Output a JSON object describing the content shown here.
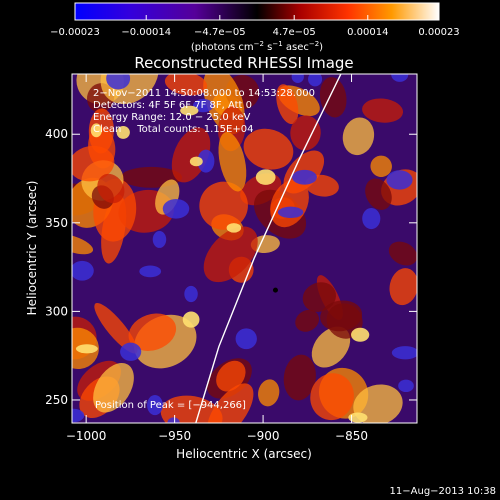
{
  "chart_data": {
    "type": "heatmap",
    "title": "Reconstructed RHESSI Image",
    "xlabel": "Heliocentric X (arcsec)",
    "ylabel": "Heliocentric Y (arcsec)",
    "xlim": [
      -1008,
      -813
    ],
    "ylim": [
      237,
      434
    ],
    "x_ticks": [
      -1000,
      -950,
      -900,
      -850
    ],
    "y_ticks": [
      250,
      300,
      350,
      400
    ],
    "x_tick_labels": [
      "−1000",
      "−950",
      "−900",
      "−850"
    ],
    "y_tick_labels": [
      "250",
      "300",
      "350",
      "400"
    ],
    "colorbar": {
      "range": [
        -0.00023,
        0.00023
      ],
      "ticks": [
        -0.00023,
        -0.00014,
        -4.7e-05,
        4.7e-05,
        0.00014,
        0.00023
      ],
      "tick_labels": [
        "−0.00023",
        "−0.00014",
        "−4.7e−05",
        "4.7e−05",
        "0.00014",
        "0.00023"
      ],
      "label_main": "(photons cm",
      "label_exp1": "−2",
      "label_mid": " s",
      "label_exp2": "−1",
      "label_mid2": " asec",
      "label_exp3": "−2",
      "label_end": ")"
    },
    "info_lines": [
      " 2−Nov−2011 14:50:08.000 to 14:53:28.000",
      "Detectors: 4F 5F 6F 7F 8F, Att 0",
      "Energy Range: 12.0 − 25.0 keV",
      "Clean     Total counts: 1.15E+04"
    ],
    "peak_label": "Position of Peak = [−944,266]",
    "peak_position": [
      -944,
      266
    ],
    "limb_curve": [
      [
        -938,
        237
      ],
      [
        -925,
        280
      ],
      [
        -905,
        330
      ],
      [
        -880,
        385
      ],
      [
        -856,
        434
      ]
    ],
    "footer_date": "11−Aug−2013 10:38",
    "colors": {
      "background": "#000000",
      "text": "#ffffff",
      "axes": "#ffffff",
      "cmap_low": "#0000ff",
      "cmap_mid": "#000000",
      "cmap_high": "#ffffff"
    }
  }
}
